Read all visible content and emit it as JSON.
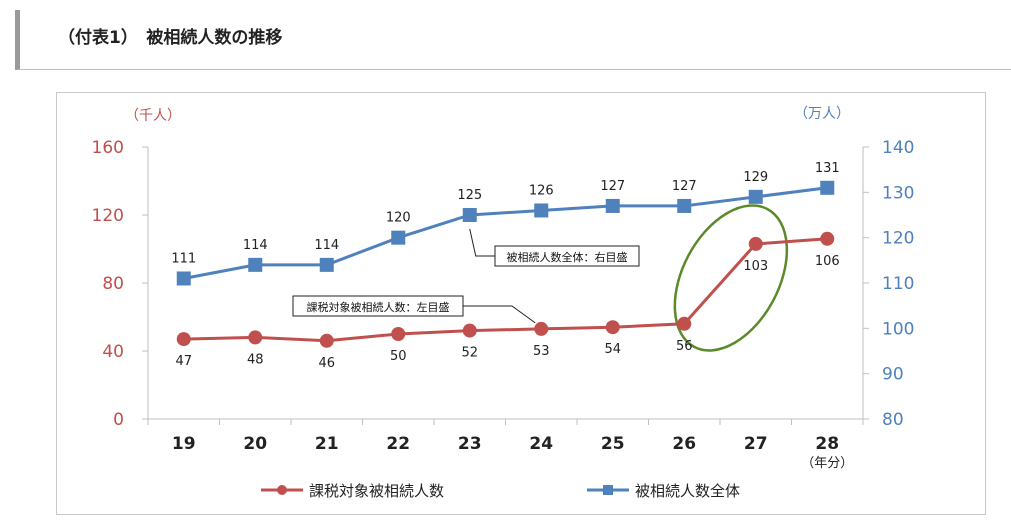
{
  "page": {
    "title": "（付表1）　被相続人数の推移"
  },
  "chart_data": {
    "type": "line",
    "categories": [
      "19",
      "20",
      "21",
      "22",
      "23",
      "24",
      "25",
      "26",
      "27",
      "28"
    ],
    "x_unit_label": "（年分）",
    "y_left": {
      "unit_label": "（千人）",
      "min": 0,
      "max": 160,
      "ticks": [
        "0",
        "40",
        "80",
        "120",
        "160"
      ]
    },
    "y_right": {
      "unit_label": "（万人）",
      "min": 80,
      "max": 140,
      "ticks": [
        "80",
        "90",
        "100",
        "110",
        "120",
        "130",
        "140"
      ]
    },
    "series": [
      {
        "name": "課税対象被相続人数",
        "axis": "left",
        "color": "#c0504d",
        "values": [
          47,
          48,
          46,
          50,
          52,
          53,
          54,
          56,
          103,
          106
        ],
        "labels": [
          "47",
          "48",
          "46",
          "50",
          "52",
          "53",
          "54",
          "56",
          "103",
          "106"
        ]
      },
      {
        "name": "被相続人数全体",
        "axis": "right",
        "color": "#4f81bd",
        "values": [
          111,
          114,
          114,
          120,
          125,
          126,
          127,
          127,
          129,
          131
        ],
        "labels": [
          "111",
          "114",
          "114",
          "120",
          "125",
          "126",
          "127",
          "127",
          "129",
          "131"
        ]
      }
    ],
    "annotations": [
      {
        "text": "被相続人数全体：右目盛"
      },
      {
        "text": "課税対象被相続人数：左目盛"
      }
    ],
    "highlight_color": "#5a8a2a",
    "grid": false,
    "legend_position": "bottom"
  }
}
